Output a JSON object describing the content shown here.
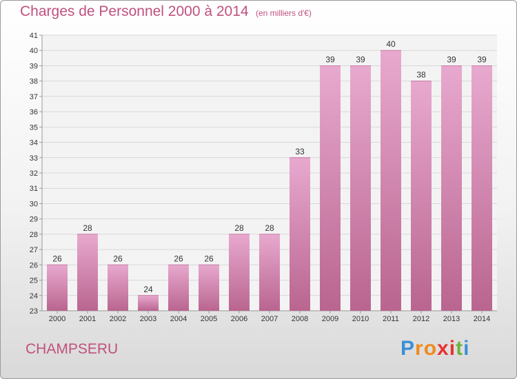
{
  "header": {
    "title": "Charges de Personnel 2000 à 2014",
    "subtitle": "(en milliers d'€)"
  },
  "footer": {
    "commune": "CHAMPSERU",
    "logo_letters": [
      "P",
      "r",
      "o",
      "x",
      "i",
      "t",
      "i"
    ],
    "logo_colors": [
      "#3b8fd6",
      "#f08a1c",
      "#f08a1c",
      "#e8322f",
      "#e8322f",
      "#6db33f",
      "#3b8fd6"
    ]
  },
  "colors": {
    "bar_light": "#e8a9cf",
    "bar_dark": "#b9658f",
    "grid": "#d8d8d8",
    "axis": "#999999",
    "plot_bg": "#f3f3f3"
  },
  "chart_data": {
    "type": "bar",
    "title": "Charges de Personnel 2000 à 2014",
    "subtitle": "(en milliers d'€)",
    "categories": [
      "2000",
      "2001",
      "2002",
      "2003",
      "2004",
      "2005",
      "2006",
      "2007",
      "2008",
      "2009",
      "2010",
      "2011",
      "2012",
      "2013",
      "2014"
    ],
    "values": [
      26,
      28,
      26,
      24,
      26,
      26,
      28,
      28,
      33,
      39,
      39,
      40,
      38,
      39,
      39
    ],
    "ylim": [
      23,
      41
    ],
    "yticks": [
      "23",
      "24",
      "25",
      "26",
      "27",
      "28",
      "29",
      "30",
      "31",
      "32",
      "33",
      "34",
      "35",
      "36",
      "37",
      "38",
      "39",
      "40",
      "41"
    ],
    "grid": true,
    "legend": "none"
  }
}
